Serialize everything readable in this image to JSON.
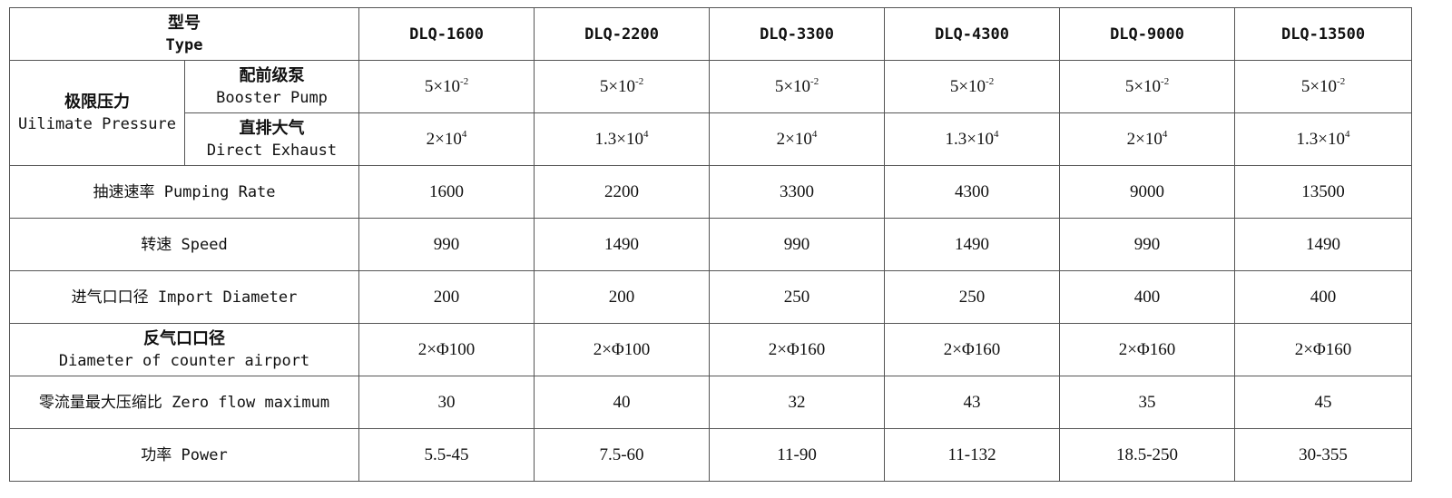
{
  "table": {
    "header": {
      "lines": [
        "型号",
        "Type"
      ],
      "models": [
        "DLQ-1600",
        "DLQ-2200",
        "DLQ-3300",
        "DLQ-4300",
        "DLQ-9000",
        "DLQ-13500"
      ]
    },
    "pressure": {
      "lines": [
        "极限压力",
        "Uilimate Pressure"
      ],
      "subrows": [
        {
          "lines": [
            "配前级泵",
            "Booster Pump"
          ],
          "values": [
            {
              "base": "5×10",
              "exp": "-2"
            },
            {
              "base": "5×10",
              "exp": "-2"
            },
            {
              "base": "5×10",
              "exp": "-2"
            },
            {
              "base": "5×10",
              "exp": "-2"
            },
            {
              "base": "5×10",
              "exp": "-2"
            },
            {
              "base": "5×10",
              "exp": "-2"
            }
          ]
        },
        {
          "lines": [
            "直排大气",
            "Direct Exhaust"
          ],
          "values": [
            {
              "base": "2×10",
              "exp": "4"
            },
            {
              "base": "1.3×10",
              "exp": "4"
            },
            {
              "base": "2×10",
              "exp": "4"
            },
            {
              "base": "1.3×10",
              "exp": "4"
            },
            {
              "base": "2×10",
              "exp": "4"
            },
            {
              "base": "1.3×10",
              "exp": "4"
            }
          ]
        }
      ]
    },
    "rows": [
      {
        "lines": [
          "抽速速率 Pumping Rate"
        ],
        "values": [
          "1600",
          "2200",
          "3300",
          "4300",
          "9000",
          "13500"
        ]
      },
      {
        "lines": [
          "转速 Speed"
        ],
        "values": [
          "990",
          "1490",
          "990",
          "1490",
          "990",
          "1490"
        ]
      },
      {
        "lines": [
          "进气口口径 Import Diameter"
        ],
        "values": [
          "200",
          "200",
          "250",
          "250",
          "400",
          "400"
        ]
      },
      {
        "lines": [
          "反气口口径",
          "Diameter of counter airport"
        ],
        "values": [
          "2×Φ100",
          "2×Φ100",
          "2×Φ160",
          "2×Φ160",
          "2×Φ160",
          "2×Φ160"
        ]
      },
      {
        "lines": [
          "零流量最大压缩比 Zero flow maximum"
        ],
        "values": [
          "30",
          "40",
          "32",
          "43",
          "35",
          "45"
        ]
      },
      {
        "lines": [
          "功率 Power"
        ],
        "values": [
          "5.5-45",
          "7.5-60",
          "11-90",
          "11-132",
          "18.5-250",
          "30-355"
        ]
      }
    ]
  }
}
